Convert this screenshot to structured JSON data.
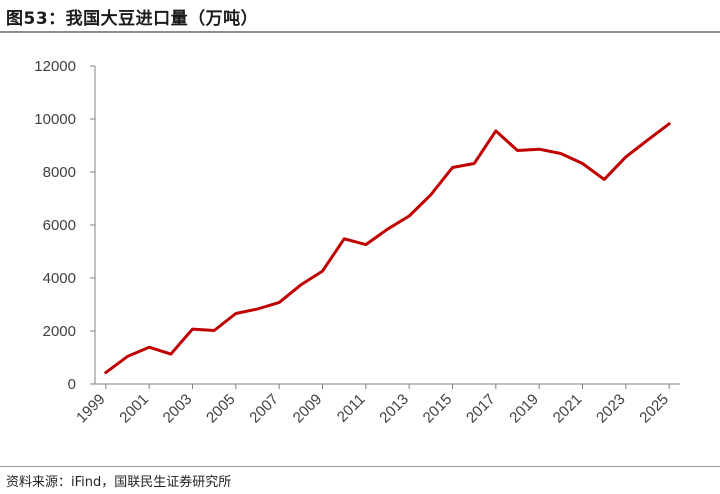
{
  "header": {
    "title": "图53：我国大豆进口量（万吨）"
  },
  "footer": {
    "source": "资料来源：iFind，国联民生证券研究所"
  },
  "chart_data": {
    "type": "line",
    "title": "图53：我国大豆进口量（万吨）",
    "xlabel": "",
    "ylabel": "",
    "ylim": [
      0,
      12000
    ],
    "yticks": [
      0,
      2000,
      4000,
      6000,
      8000,
      10000,
      12000
    ],
    "xticks": [
      1999,
      2001,
      2003,
      2005,
      2007,
      2009,
      2011,
      2013,
      2015,
      2017,
      2019,
      2021,
      2023,
      2025
    ],
    "xlim": [
      1998.5,
      2025.5
    ],
    "grid": false,
    "legend": "none",
    "series": [
      {
        "color": "#c00000",
        "x": [
          1999,
          2000,
          2001,
          2002,
          2003,
          2004,
          2005,
          2006,
          2007,
          2008,
          2009,
          2010,
          2011,
          2012,
          2013,
          2014,
          2015,
          2016,
          2017,
          2018,
          2019,
          2020,
          2021,
          2022,
          2023,
          2024,
          2025
        ],
        "values": [
          430,
          1040,
          1390,
          1130,
          2070,
          2020,
          2660,
          2830,
          3080,
          3740,
          4260,
          5480,
          5260,
          5840,
          6340,
          7140,
          8170,
          8320,
          9550,
          8810,
          8860,
          8700,
          8320,
          7720,
          8570,
          9200,
          9820
        ]
      }
    ]
  }
}
